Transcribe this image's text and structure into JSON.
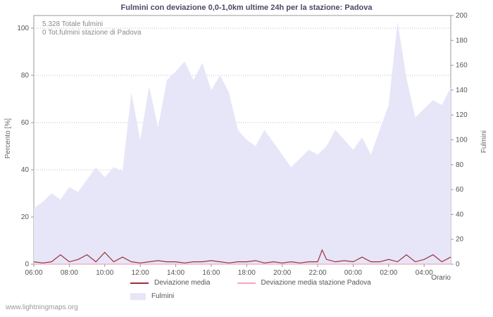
{
  "watermark": "www.lightningmaps.org",
  "chart_data": {
    "type": "area",
    "title": "Fulmini con deviazione 0,0-1,0km ultime 24h per la stazione: Padova",
    "xlabel": "Orario",
    "ylabel_left": "Percento  [%]",
    "ylabel_right": "Fulmini",
    "ylim_left": [
      0,
      100
    ],
    "ylim_right": [
      0,
      200
    ],
    "left_ticks": [
      0,
      20,
      40,
      60,
      80,
      100
    ],
    "right_ticks": [
      0,
      20,
      40,
      60,
      80,
      100,
      120,
      140,
      160,
      180,
      200
    ],
    "x_ticks": [
      "06:00",
      "08:00",
      "10:00",
      "12:00",
      "14:00",
      "16:00",
      "18:00",
      "20:00",
      "22:00",
      "00:00",
      "02:00",
      "04:00"
    ],
    "grid": "horizontal-dashed",
    "legend_position": "bottom",
    "annotations": {
      "total": "5.328 Totale fulmini",
      "station": "0 Tot.fulmini stazione di Padova"
    },
    "series": [
      {
        "name": "Fulmini",
        "type": "area",
        "axis": "right",
        "color": "#e6e6f8",
        "x": [
          0,
          0.5,
          1,
          1.5,
          2,
          2.5,
          3,
          3.5,
          4,
          4.5,
          5,
          5.5,
          6,
          6.5,
          7,
          7.5,
          8,
          8.5,
          9,
          9.5,
          10,
          10.5,
          11,
          11.5,
          12,
          12.5,
          13,
          13.5,
          14,
          14.5,
          15,
          15.5,
          16,
          16.5,
          17,
          17.5,
          18,
          18.5,
          19,
          19.5,
          20,
          20.5,
          21,
          21.5,
          22,
          22.5,
          23,
          23.5
        ],
        "values": [
          45,
          50,
          57,
          52,
          62,
          58,
          68,
          78,
          70,
          78,
          75,
          138,
          100,
          143,
          110,
          148,
          155,
          163,
          148,
          162,
          140,
          152,
          138,
          108,
          100,
          95,
          108,
          98,
          88,
          78,
          85,
          92,
          88,
          95,
          108,
          100,
          92,
          102,
          88,
          108,
          128,
          195,
          150,
          118,
          125,
          132,
          128,
          142
        ]
      },
      {
        "name": "Deviazione media",
        "type": "line",
        "axis": "left",
        "color": "#a03038",
        "x": [
          0,
          0.5,
          1,
          1.5,
          2,
          2.5,
          3,
          3.5,
          4,
          4.5,
          5,
          5.5,
          6,
          6.5,
          7,
          7.5,
          8,
          8.5,
          9,
          9.5,
          10,
          10.5,
          11,
          11.5,
          12,
          12.5,
          13,
          13.5,
          14,
          14.5,
          15,
          15.5,
          16,
          16.25,
          16.5,
          17,
          17.5,
          18,
          18.5,
          19,
          19.5,
          20,
          20.5,
          21,
          21.5,
          22,
          22.5,
          23,
          23.5
        ],
        "values": [
          1,
          0.5,
          1,
          4,
          1,
          2,
          4,
          1,
          5,
          1,
          3,
          1,
          0.5,
          1,
          1.5,
          1,
          1,
          0.5,
          1,
          1,
          1.5,
          1,
          0.5,
          1,
          1,
          1.5,
          0.5,
          1,
          0.5,
          1,
          0.5,
          1,
          1,
          6,
          2,
          1,
          1.5,
          1,
          3,
          1,
          1,
          2,
          1,
          4,
          1,
          2,
          4,
          1,
          3
        ]
      },
      {
        "name": "Deviazione media stazione Padova",
        "type": "line",
        "axis": "left",
        "color": "#f2a8bc",
        "x": [
          0,
          23.5
        ],
        "values": [
          0,
          0
        ]
      }
    ]
  }
}
